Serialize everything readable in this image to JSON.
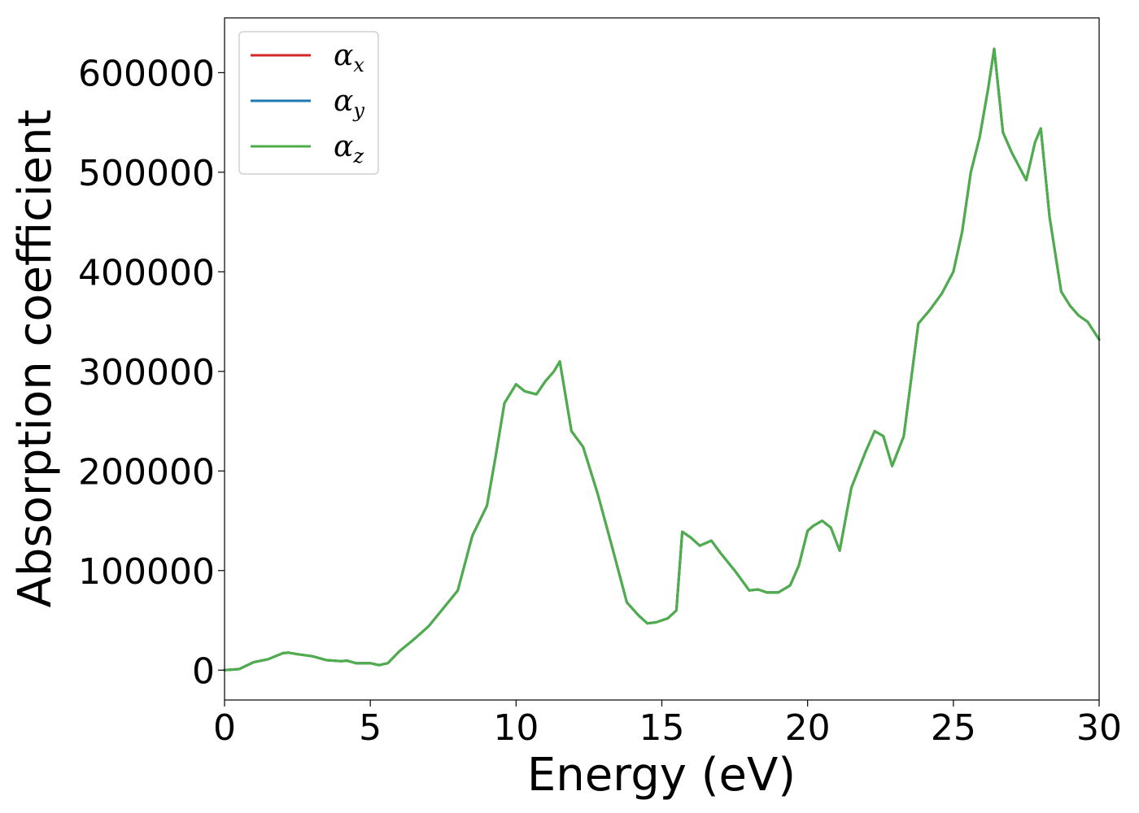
{
  "chart_data": {
    "type": "line",
    "xlabel": "Energy (eV)",
    "ylabel": "Absorption coefficient",
    "xlim": [
      0,
      30
    ],
    "ylim": [
      -30000,
      655000
    ],
    "xticks": [
      0,
      5,
      10,
      15,
      20,
      25,
      30
    ],
    "yticks": [
      0,
      100000,
      200000,
      300000,
      400000,
      500000,
      600000
    ],
    "grid": false,
    "legend_position": "top-left",
    "series": [
      {
        "name": "α",
        "subscript": "x",
        "color": "#d62728"
      },
      {
        "name": "α",
        "subscript": "y",
        "color": "#1f77b4"
      },
      {
        "name": "α",
        "subscript": "z",
        "color": "#4daf4a"
      }
    ],
    "x": [
      0,
      0.5,
      1,
      1.5,
      2,
      2.2,
      2.5,
      3,
      3.5,
      4,
      4.2,
      4.5,
      5,
      5.3,
      5.6,
      6,
      6.5,
      7,
      7.5,
      8,
      8.5,
      9,
      9.3,
      9.6,
      10,
      10.3,
      10.7,
      11,
      11.3,
      11.5,
      11.9,
      12.3,
      12.8,
      13.3,
      13.8,
      14.2,
      14.5,
      14.8,
      15.2,
      15.5,
      15.7,
      16,
      16.3,
      16.7,
      17,
      17.5,
      18,
      18.3,
      18.6,
      19,
      19.4,
      19.7,
      20,
      20.2,
      20.5,
      20.8,
      21.1,
      21.5,
      22,
      22.3,
      22.6,
      22.9,
      23.3,
      23.8,
      24.2,
      24.6,
      25,
      25.3,
      25.6,
      25.9,
      26.2,
      26.4,
      26.7,
      27,
      27.5,
      27.8,
      28,
      28.3,
      28.7,
      29,
      29.3,
      29.6,
      30
    ],
    "values": [
      0,
      1000,
      8000,
      11000,
      17000,
      17500,
      16000,
      14000,
      10000,
      9000,
      9500,
      7000,
      7000,
      5000,
      7000,
      19000,
      31000,
      44000,
      62000,
      80000,
      135000,
      165000,
      215000,
      268000,
      287000,
      280000,
      277000,
      290000,
      300000,
      310000,
      240000,
      224000,
      177000,
      123000,
      68000,
      55000,
      47000,
      48000,
      52000,
      60000,
      139000,
      133000,
      125000,
      130000,
      118000,
      100000,
      80000,
      81000,
      78000,
      78000,
      85000,
      105000,
      140000,
      145000,
      150000,
      143000,
      120000,
      183000,
      220000,
      240000,
      235000,
      205000,
      235000,
      348000,
      362000,
      378000,
      400000,
      440000,
      500000,
      535000,
      585000,
      624000,
      540000,
      520000,
      492000,
      530000,
      544000,
      455000,
      380000,
      366000,
      356000,
      350000,
      332000
    ]
  }
}
